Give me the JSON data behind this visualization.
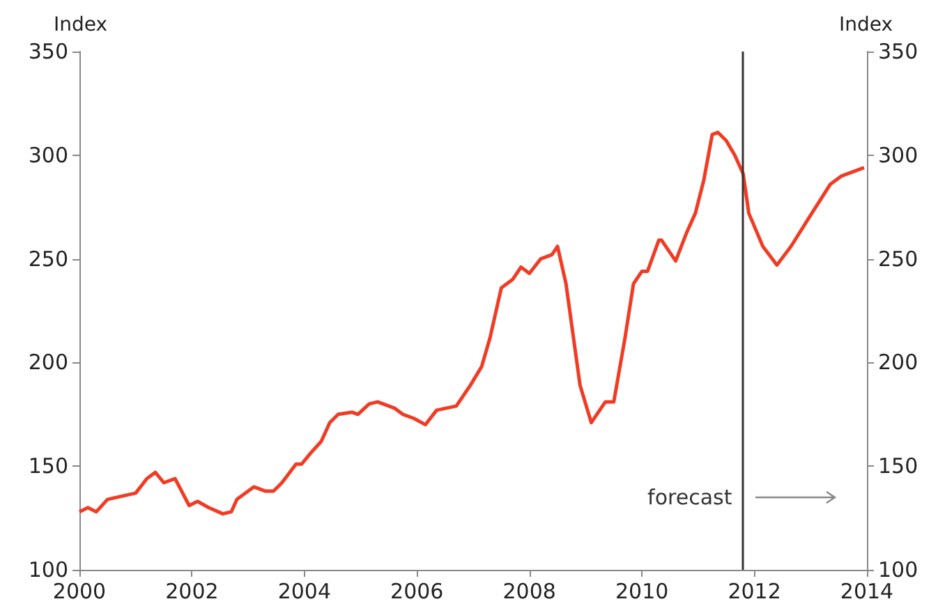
{
  "chart_data": {
    "type": "line",
    "ylabel": "Index",
    "y2label": "Index",
    "x": [
      2000,
      2000.15,
      2000.3,
      2000.5,
      2001,
      2001.2,
      2001.35,
      2001.5,
      2001.7,
      2001.95,
      2002.1,
      2002.3,
      2002.55,
      2002.7,
      2002.8,
      2003.1,
      2003.3,
      2003.45,
      2003.6,
      2003.85,
      2003.95,
      2004.1,
      2004.3,
      2004.45,
      2004.6,
      2004.85,
      2004.95,
      2005.15,
      2005.3,
      2005.6,
      2005.75,
      2005.95,
      2006.15,
      2006.35,
      2006.7,
      2006.95,
      2007.15,
      2007.3,
      2007.5,
      2007.7,
      2007.85,
      2008,
      2008.2,
      2008.4,
      2008.5,
      2008.65,
      2008.9,
      2009.1,
      2009.35,
      2009.5,
      2009.7,
      2009.85,
      2010,
      2010.1,
      2010.3,
      2010.35,
      2010.6,
      2010.8,
      2010.95,
      2011.1,
      2011.25,
      2011.35,
      2011.5,
      2011.65,
      2011.8,
      2011.9,
      2012.15,
      2012.4,
      2012.65,
      2012.95,
      2013.35,
      2013.55,
      2013.95
    ],
    "series": [
      {
        "color": "#f03c24",
        "values": [
          128,
          130,
          128,
          134,
          137,
          144,
          147,
          142,
          144,
          131,
          133,
          130,
          127,
          128,
          134,
          140,
          138,
          138,
          142,
          151,
          151,
          156,
          162,
          171,
          175,
          176,
          175,
          180,
          181,
          178,
          175,
          173,
          170,
          177,
          179,
          189,
          198,
          212,
          236,
          240,
          246,
          243,
          250,
          252,
          256,
          238,
          189,
          171,
          181,
          181,
          212,
          238,
          244,
          244,
          259,
          259,
          249,
          263,
          272,
          288,
          310,
          311,
          307,
          300,
          291,
          272,
          256,
          247,
          256,
          269,
          286,
          290,
          294
        ]
      }
    ],
    "xlim": [
      2000,
      2014
    ],
    "xticks": [
      2000,
      2002,
      2004,
      2006,
      2008,
      2010,
      2012,
      2014
    ],
    "ylim": [
      100,
      350
    ],
    "yticks": [
      100,
      150,
      200,
      250,
      300,
      350
    ],
    "y2lim": [
      100,
      350
    ],
    "y2ticks": [
      100,
      150,
      200,
      250,
      300,
      350
    ],
    "ref_lines": [
      {
        "axis": "x",
        "value": 2011.8,
        "label": "forecast",
        "color": "#333333"
      }
    ],
    "grid": false,
    "marker": "none",
    "line_style": "solid"
  }
}
